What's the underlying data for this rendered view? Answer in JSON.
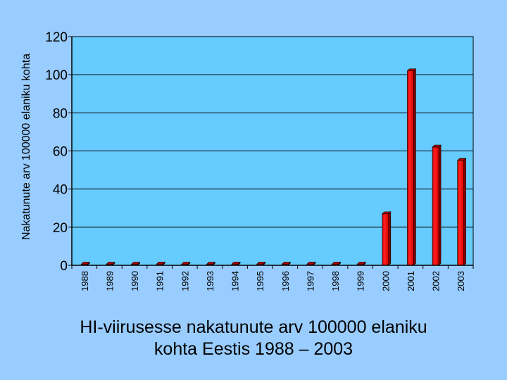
{
  "chart_data": {
    "type": "bar",
    "ylabel": "Nakatunute arv 100000 elaniku kohta",
    "xlabel": "",
    "categories": [
      "1988",
      "1989",
      "1990",
      "1991",
      "1992",
      "1993",
      "1994",
      "1995",
      "1996",
      "1997",
      "1998",
      "1999",
      "2000",
      "2001",
      "2002",
      "2003"
    ],
    "values": [
      0.3,
      0.2,
      0.5,
      0.6,
      0.5,
      0.2,
      0.6,
      0.6,
      0.5,
      0.6,
      0.6,
      0.6,
      27,
      102,
      62,
      55
    ],
    "ylim": [
      0,
      120
    ],
    "yticks": [
      "0",
      "20",
      "40",
      "60",
      "80",
      "100",
      "120"
    ],
    "grid": true,
    "bar_color": "#ee0000",
    "plot_background": "#66ccff"
  },
  "caption": {
    "line1": "HI-viirusesse nakatunute arv 100000 elaniku",
    "line2": "kohta Eestis 1988 – 2003"
  }
}
